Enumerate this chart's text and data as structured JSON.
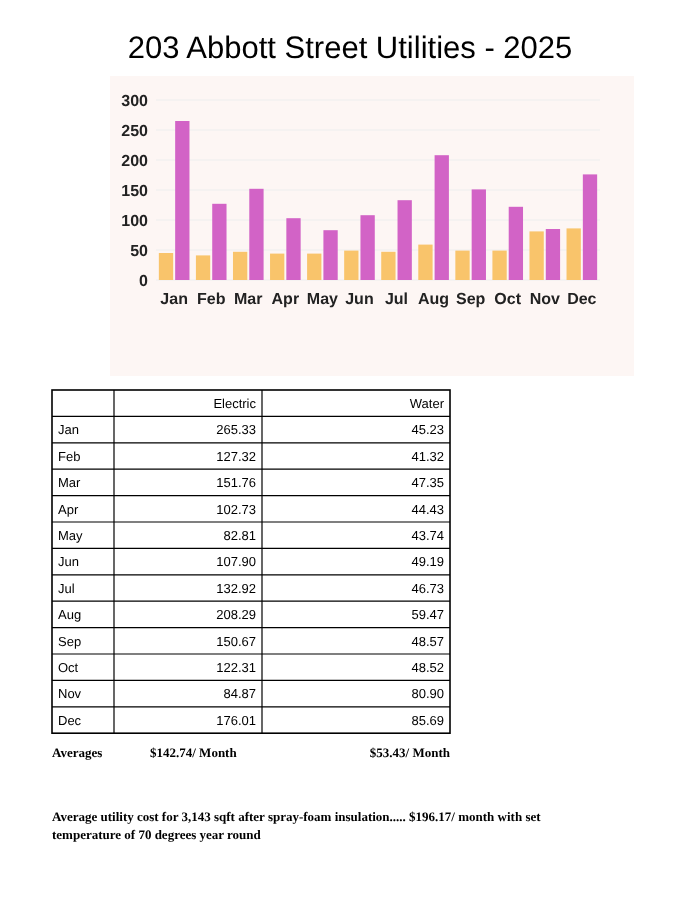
{
  "chart_data": [
    {
      "type": "bar",
      "title": "203 Abbott Street Utilities - 2025",
      "categories": [
        "Jan",
        "Feb",
        "Mar",
        "Apr",
        "May",
        "Jun",
        "Jul",
        "Aug",
        "Sep",
        "Oct",
        "Nov",
        "Dec"
      ],
      "series": [
        {
          "color": "#f9c46b",
          "values": [
            45,
            41,
            47,
            44,
            44,
            49,
            47,
            59,
            49,
            49,
            81,
            86
          ]
        },
        {
          "color": "#d263c6",
          "values": [
            265,
            127,
            152,
            103,
            83,
            108,
            133,
            208,
            151,
            122,
            85,
            176
          ]
        }
      ],
      "ylim": [
        0,
        300
      ],
      "yticks": [
        0,
        50,
        100,
        150,
        200,
        250,
        300
      ],
      "grid": "y"
    },
    {
      "type": "other",
      "categories": [
        "Jan",
        "Feb",
        "Mar",
        "Apr",
        "May",
        "Jun",
        "Jul",
        "Aug",
        "Sep",
        "Oct",
        "Nov",
        "Dec"
      ],
      "series": [
        {
          "name": "Electric",
          "values": [
            265.33,
            127.32,
            151.76,
            102.73,
            82.81,
            107.9,
            132.92,
            208.29,
            150.67,
            122.31,
            84.87,
            176.01
          ],
          "value_labels": [
            "265.33",
            "127.32",
            "151.76",
            "102.73",
            "82.81",
            "107.90",
            "132.92",
            "208.29",
            "150.67",
            "122.31",
            "84.87",
            "176.01"
          ]
        },
        {
          "name": "Water",
          "values": [
            45.23,
            41.32,
            47.35,
            44.43,
            43.74,
            49.19,
            46.73,
            59.47,
            48.57,
            48.52,
            80.9,
            85.69
          ],
          "value_labels": [
            "45.23",
            "41.32",
            "47.35",
            "44.43",
            "43.74",
            "49.19",
            "46.73",
            "59.47",
            "48.57",
            "48.52",
            "80.90",
            "85.69"
          ]
        }
      ],
      "data_labels": true,
      "annotations": [
        "Averages",
        "$142.74/ Month",
        "$53.43/ Month",
        "Average utility cost for 3,143 sqft after spray-foam insulation..... $196.17/ month with set temperature of 70 degrees year round"
      ]
    }
  ]
}
